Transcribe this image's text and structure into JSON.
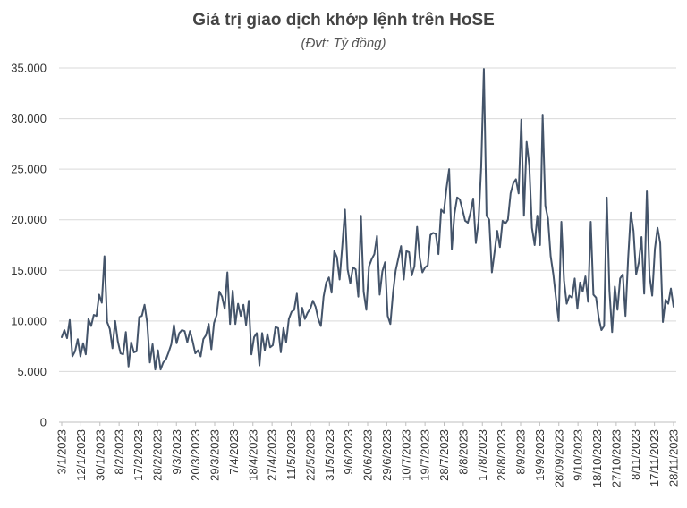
{
  "chart_data": {
    "type": "line",
    "title": "Giá trị giao dịch khớp lệnh trên HoSE",
    "subtitle": "(Đvt: Tỷ đồng)",
    "xlabel": "",
    "ylabel": "",
    "ylim": [
      0,
      35000
    ],
    "y_ticks": [
      "0",
      "5.000",
      "10.000",
      "15.000",
      "20.000",
      "25.000",
      "30.000",
      "35.000"
    ],
    "x_tick_labels": [
      "3/1/2023",
      "12/1/2023",
      "30/1/2023",
      "8/2/2023",
      "17/2/2023",
      "28/2/2023",
      "9/3/2023",
      "20/3/2023",
      "29/3/2023",
      "7/4/2023",
      "18/4/2023",
      "27/4/2023",
      "11/5/2023",
      "22/5/2023",
      "31/5/2023",
      "9/6/2023",
      "20/6/2023",
      "29/6/2023",
      "10/7/2023",
      "19/7/2023",
      "28/7/2023",
      "8/8/2023",
      "17/8/2023",
      "28/8/2023",
      "8/9/2023",
      "19/9/2023",
      "28/09/2023",
      "9/10/2023",
      "18/10/2023",
      "27/10/2023",
      "8/11/2023",
      "17/11/2023",
      "28/11/2023"
    ],
    "grid": true,
    "legend": "none",
    "line_color": "#44546a",
    "series": [
      {
        "values": [
          8400,
          9100,
          8300,
          10100,
          6500,
          7000,
          8200,
          6500,
          7800,
          6700,
          10200,
          9500,
          10600,
          10500,
          12600,
          11800,
          16400,
          9900,
          9200,
          7300,
          10000,
          8000,
          6800,
          6700,
          8900,
          5500,
          7900,
          6900,
          7000,
          10400,
          10500,
          11600,
          9800,
          5900,
          7700,
          5200,
          7100,
          5200,
          5900,
          6200,
          6900,
          7700,
          9600,
          7800,
          8800,
          9100,
          9000,
          7900,
          9000,
          8000,
          6800,
          7100,
          6500,
          8200,
          8600,
          9700,
          7200,
          9800,
          10600,
          12900,
          12400,
          11200,
          14800,
          9700,
          13000,
          9700,
          11700,
          10500,
          11600,
          9600,
          12000,
          6700,
          8400,
          8800,
          5600,
          8800,
          7100,
          8700,
          7400,
          7600,
          9400,
          9300,
          6900,
          9300,
          7900,
          10200,
          10900,
          11100,
          12700,
          9500,
          11300,
          10200,
          10800,
          11200,
          12000,
          11400,
          10200,
          9500,
          12400,
          13800,
          14300,
          12800,
          16900,
          16300,
          14100,
          17400,
          21000,
          15100,
          13700,
          15300,
          15100,
          12400,
          20400,
          12900,
          11100,
          15400,
          16100,
          16600,
          18400,
          12600,
          14900,
          15800,
          10500,
          9700,
          12800,
          15000,
          16200,
          17400,
          14100,
          16900,
          16800,
          14500,
          15400,
          19300,
          16200,
          14800,
          15300,
          15500,
          18500,
          18700,
          18600,
          16600,
          21000,
          20700,
          23100,
          25000,
          17100,
          20600,
          22200,
          22000,
          21000,
          19900,
          19700,
          20700,
          22100,
          17700,
          19800,
          25200,
          34900,
          20400,
          20000,
          14800,
          16800,
          18900,
          17300,
          19900,
          19600,
          20000,
          22600,
          23600,
          24000,
          22600,
          29900,
          20400,
          27700,
          25400,
          19200,
          17500,
          20400,
          17500,
          30300,
          21400,
          20100,
          16400,
          14600,
          12200,
          10000,
          19800,
          14000,
          11700,
          12500,
          12300,
          14200,
          11200,
          13800,
          12900,
          14400,
          11900,
          19800,
          12600,
          12300,
          10300,
          9100,
          9500,
          22200,
          13000,
          8900,
          13400,
          11100,
          14200,
          14600,
          10500,
          16200,
          20700,
          18900,
          14600,
          15800,
          18300,
          12700,
          22800,
          14500,
          12500,
          17100,
          19200,
          17700,
          9900,
          12100,
          11700,
          13200,
          11400
        ]
      }
    ]
  }
}
